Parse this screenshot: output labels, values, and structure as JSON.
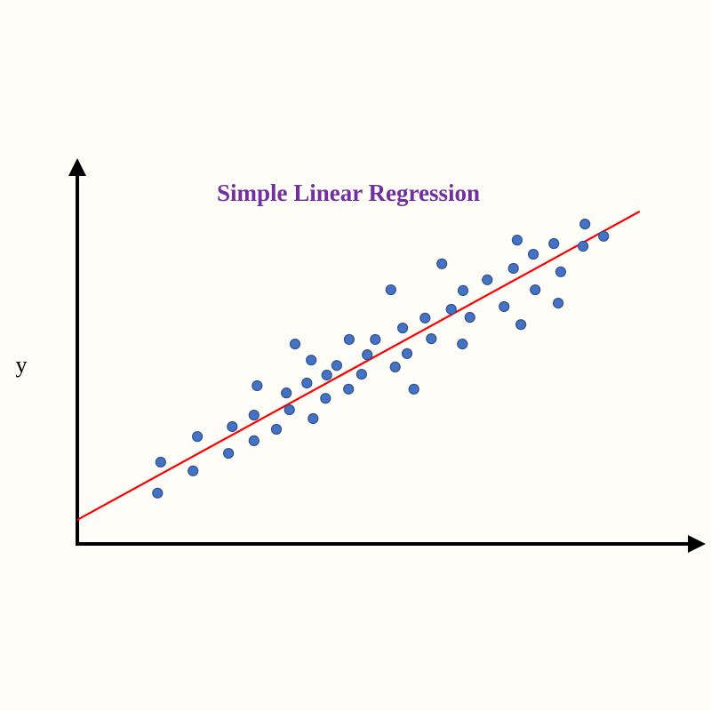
{
  "chart_data": {
    "type": "scatter",
    "title": "Simple Linear Regression",
    "title_color": "#7030a0",
    "y_label": "y",
    "xlim": [
      0,
      100
    ],
    "ylim": [
      0,
      100
    ],
    "grid": false,
    "series": [
      {
        "color": "#4472c4",
        "x": [
          12.9,
          13.4,
          18.6,
          19.3,
          24.3,
          24.9,
          28.4,
          28.4,
          28.9,
          32.0,
          33.6,
          34.1,
          35.0,
          36.9,
          37.6,
          37.9,
          39.9,
          40.1,
          41.7,
          43.6,
          43.7,
          45.7,
          46.6,
          47.9,
          50.4,
          51.1,
          52.3,
          53.0,
          54.1,
          55.9,
          56.9,
          58.6,
          60.1,
          61.9,
          62.0,
          63.1,
          65.9,
          68.6,
          70.1,
          70.7,
          71.3,
          73.3,
          73.6,
          76.6,
          77.3,
          77.7,
          81.3,
          81.6,
          84.6
        ],
        "values": [
          13.3,
          21.4,
          19.1,
          28.1,
          23.7,
          30.7,
          27.0,
          33.7,
          41.4,
          30.0,
          39.5,
          35.1,
          52.3,
          42.1,
          48.1,
          32.8,
          38.1,
          44.2,
          46.7,
          40.5,
          53.5,
          44.4,
          49.5,
          53.5,
          66.5,
          46.3,
          56.5,
          49.8,
          40.5,
          59.1,
          53.7,
          73.3,
          61.4,
          52.3,
          66.3,
          59.3,
          69.1,
          62.1,
          72.1,
          79.5,
          57.4,
          75.8,
          66.5,
          78.6,
          63.0,
          71.2,
          77.9,
          83.7,
          80.5
        ]
      }
    ],
    "regression_line": {
      "color": "#ff0000",
      "x": [
        0,
        90.4
      ],
      "values": [
        6.3,
        87.0
      ]
    }
  }
}
